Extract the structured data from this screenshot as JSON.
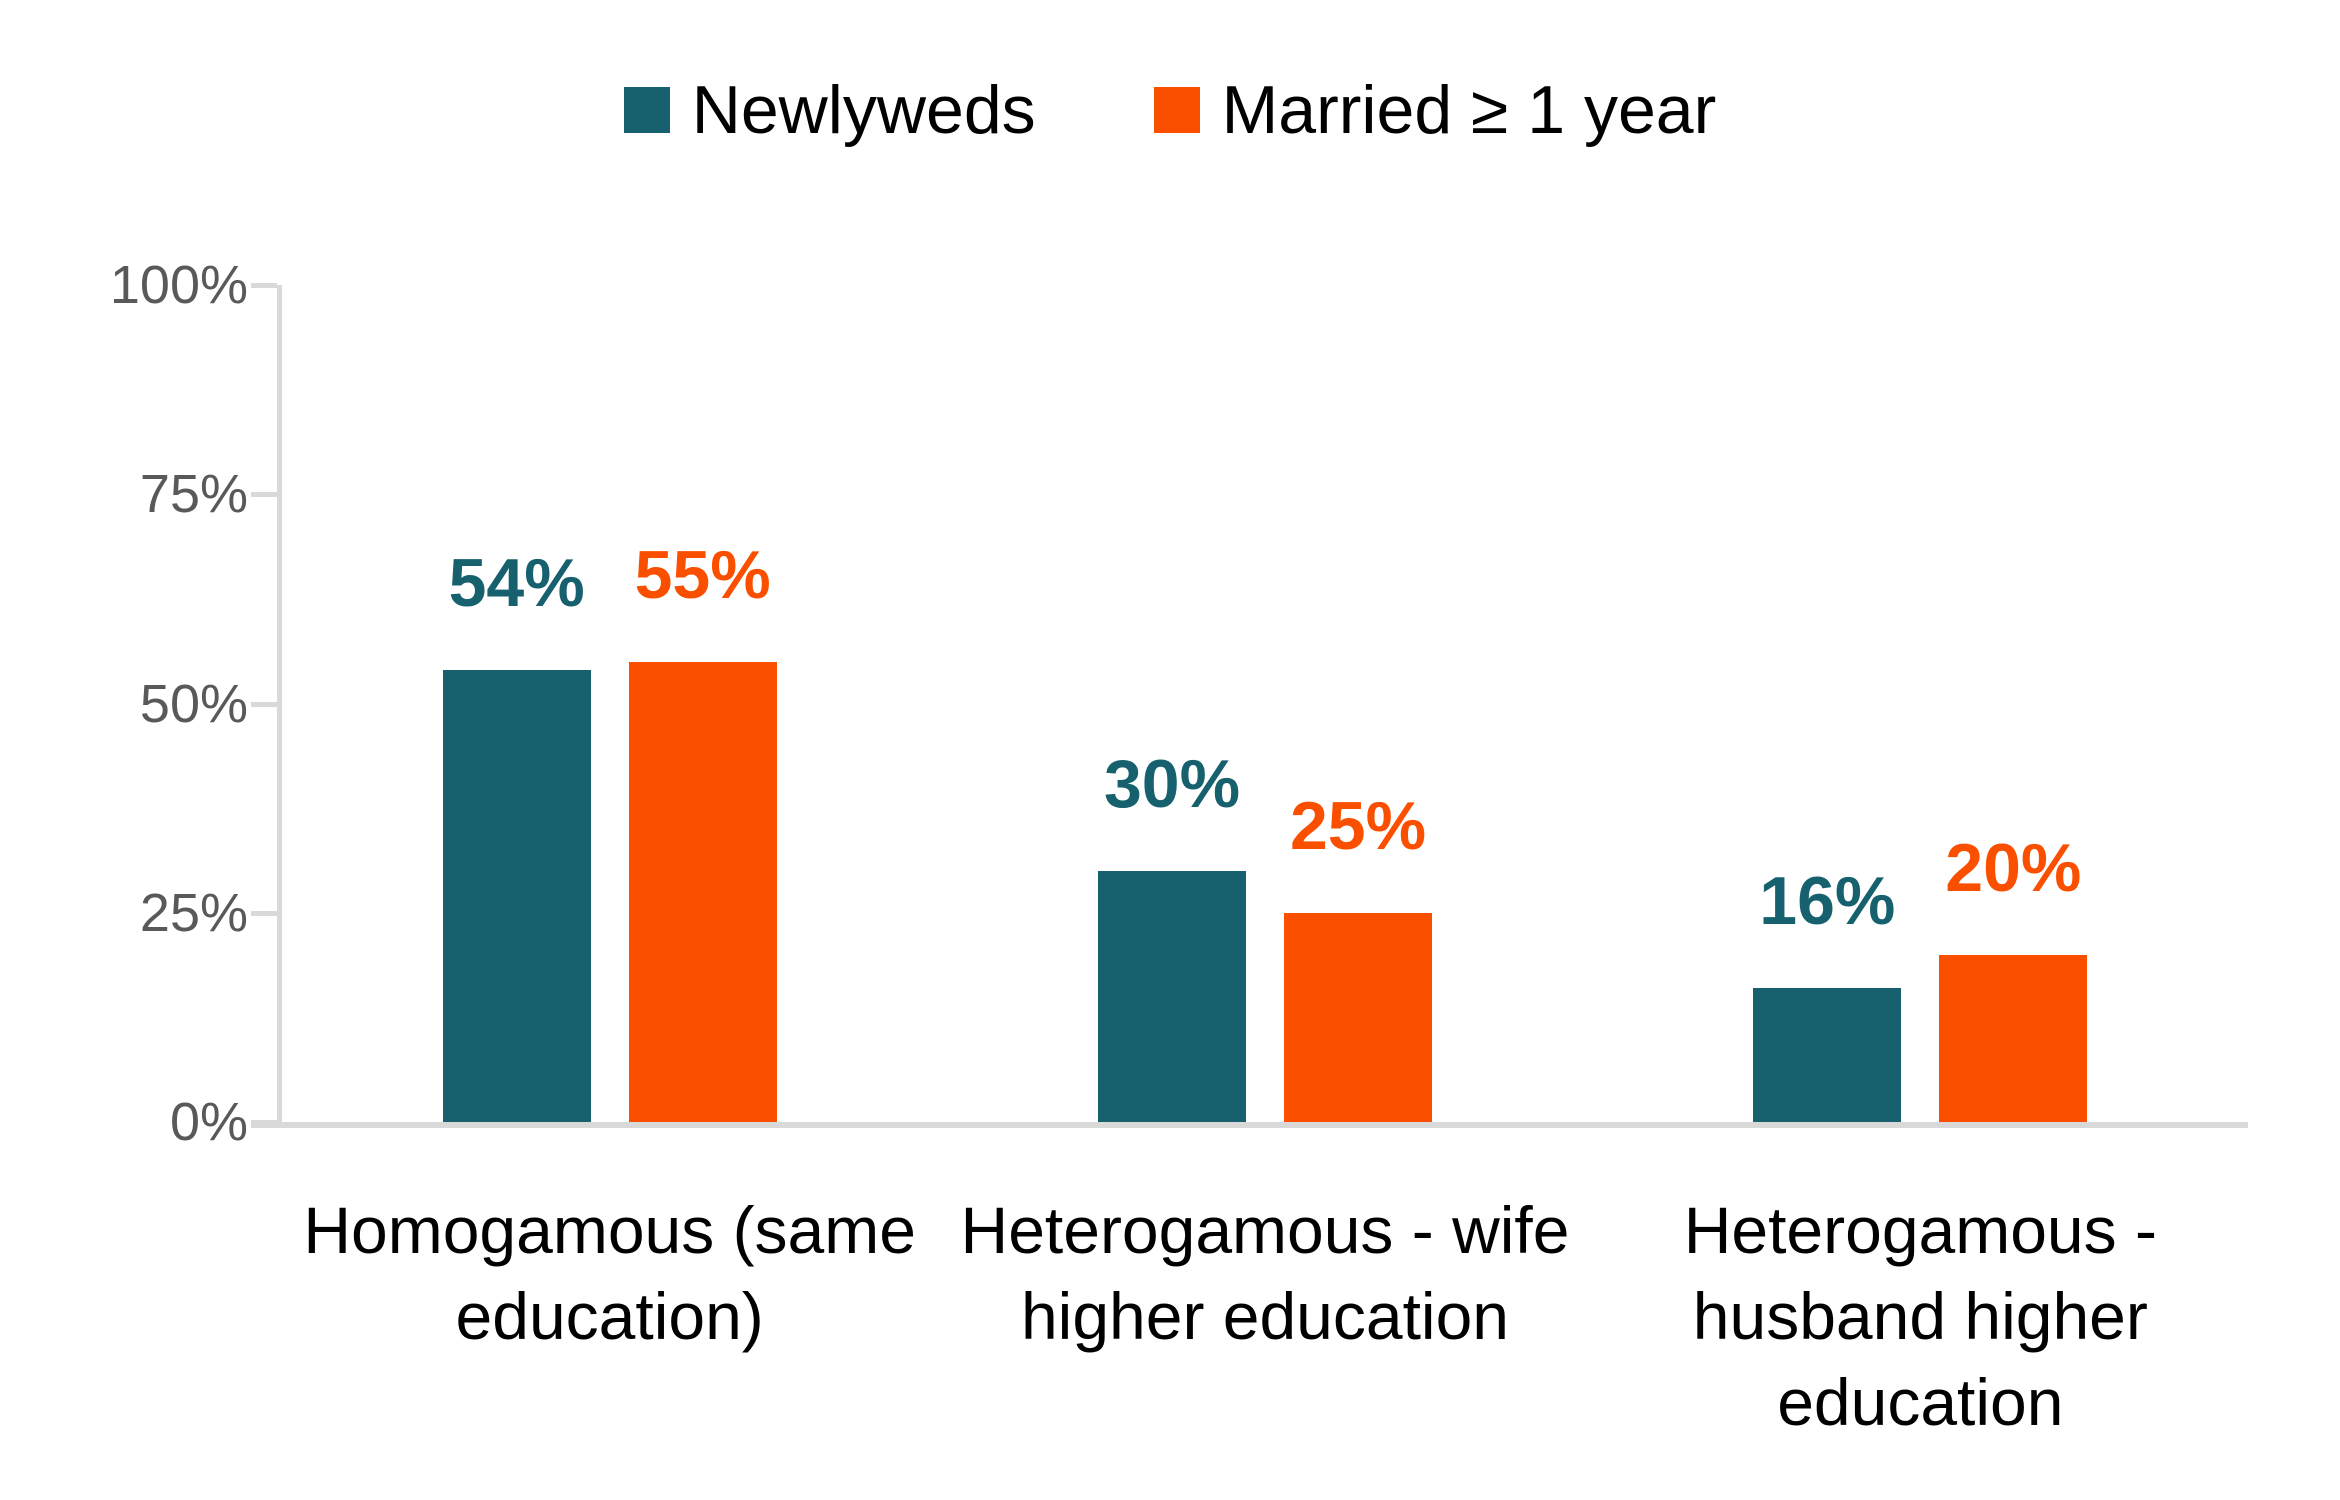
{
  "legend": {
    "items": [
      {
        "label": "Newlyweds",
        "color": "#16616D"
      },
      {
        "label": "Married ≥ 1 year",
        "color": "#FB4F00"
      }
    ]
  },
  "chart_data": {
    "type": "bar",
    "categories": [
      "Homogamous (same\neducation)",
      "Heterogamous - wife\nhigher education",
      "Heterogamous -\nhusband higher\neducation"
    ],
    "series": [
      {
        "name": "Newlyweds",
        "color": "#16616D",
        "values": [
          54,
          30,
          16
        ]
      },
      {
        "name": "Married ≥ 1 year",
        "color": "#FB4F00",
        "values": [
          55,
          25,
          20
        ]
      }
    ],
    "data_label_format": "percent",
    "yticks": [
      "0%",
      "25%",
      "50%",
      "75%",
      "100%"
    ],
    "ylim": [
      0,
      100
    ],
    "grid": false,
    "legend_position": "top-center",
    "axis_color": "#D9D9D9",
    "tick_label_color": "#595959"
  }
}
